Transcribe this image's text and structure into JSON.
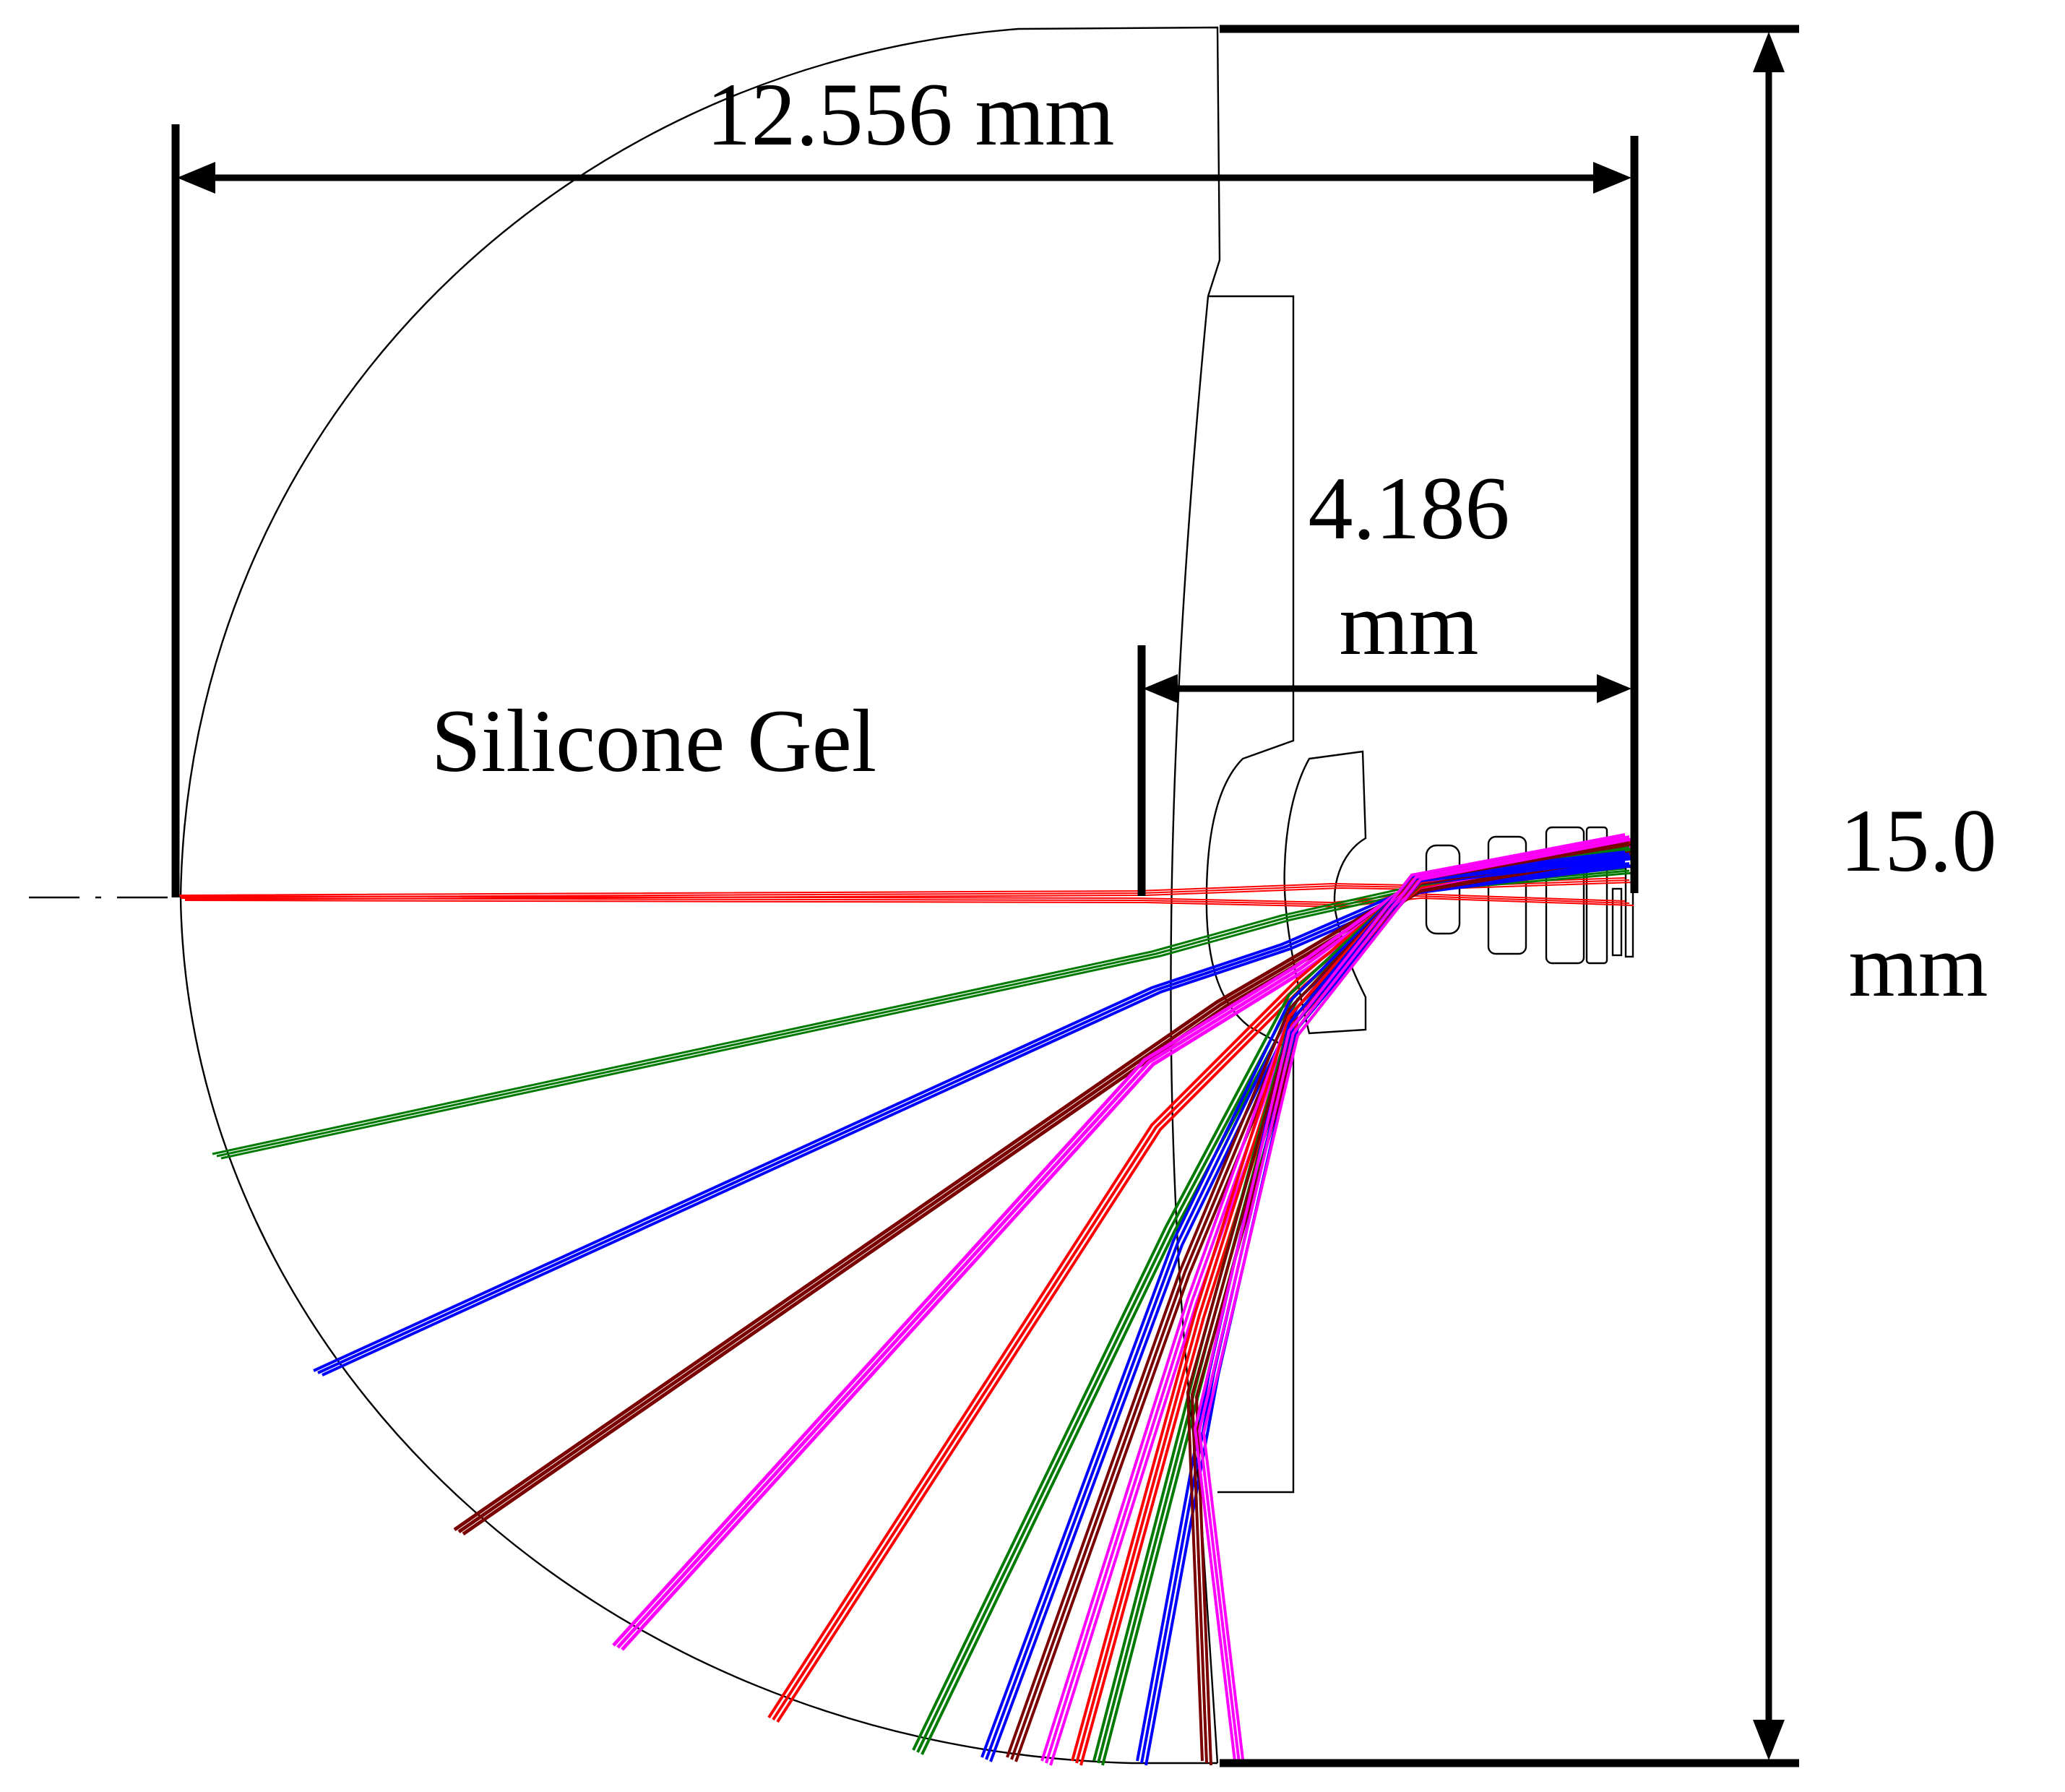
{
  "labels": {
    "width_dim": "12.556 mm",
    "stop_dim_value": "4.186",
    "stop_dim_unit": "mm",
    "height_dim_value": "15.0",
    "height_dim_unit": "mm",
    "medium": "Silicone Gel"
  },
  "ray_colors": [
    "#ff0000",
    "#007a00",
    "#0000ff",
    "#7a0000",
    "#ff00ff"
  ]
}
